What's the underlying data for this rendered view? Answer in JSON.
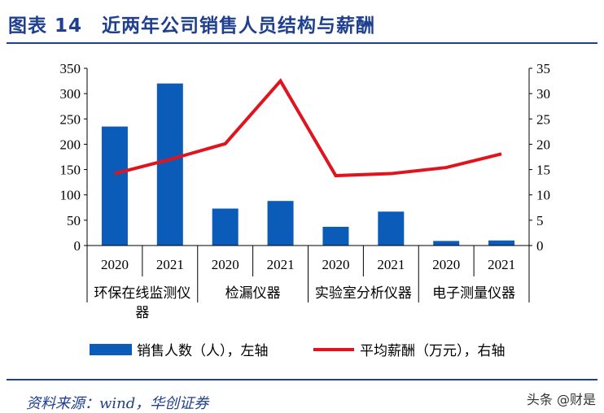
{
  "title": "图表 14　近两年公司销售人员结构与薪酬",
  "source": "资料来源：wind，华创证券",
  "watermark": "头条 @财是",
  "chart_data": {
    "type": "bar+line",
    "groups": [
      "环保在线监测仪器",
      "检漏仪器",
      "实验室分析仪器",
      "电子测量仪器"
    ],
    "categories": [
      "2020",
      "2021",
      "2020",
      "2021",
      "2020",
      "2021",
      "2020",
      "2021"
    ],
    "series": [
      {
        "name": "销售人数（人），左轴",
        "type": "bar",
        "axis": "left",
        "color": "#0a5cb8",
        "values": [
          235,
          320,
          73,
          88,
          37,
          67,
          9,
          10
        ]
      },
      {
        "name": "平均薪酬（万元），右轴",
        "type": "line",
        "axis": "right",
        "color": "#e0141e",
        "values": [
          14.2,
          17.0,
          20.1,
          32.5,
          13.8,
          14.2,
          15.4,
          18.1
        ]
      }
    ],
    "left_axis": {
      "range": [
        0,
        350
      ],
      "ticks": [
        0,
        50,
        100,
        150,
        200,
        250,
        300,
        350
      ]
    },
    "right_axis": {
      "range": [
        0,
        35
      ],
      "ticks": [
        0,
        5,
        10,
        15,
        20,
        25,
        30,
        35
      ]
    },
    "grid": false,
    "legend": "bottom"
  }
}
